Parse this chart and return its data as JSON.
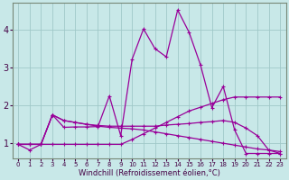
{
  "xlabel": "Windchill (Refroidissement éolien,°C)",
  "background_color": "#c8e8e8",
  "grid_color": "#a0c8c8",
  "line_color": "#990099",
  "xlim": [
    -0.5,
    23.5
  ],
  "ylim": [
    0.6,
    4.7
  ],
  "yticks": [
    1,
    2,
    3,
    4
  ],
  "xticks": [
    0,
    1,
    2,
    3,
    4,
    5,
    6,
    7,
    8,
    9,
    10,
    11,
    12,
    13,
    14,
    15,
    16,
    17,
    18,
    19,
    20,
    21,
    22,
    23
  ],
  "series0_x": [
    0,
    1,
    2,
    3,
    4,
    5,
    6,
    7,
    8,
    9,
    10,
    11,
    12,
    13,
    14,
    15,
    16,
    17,
    18,
    19,
    20,
    21,
    22,
    23
  ],
  "series0_y": [
    0.97,
    0.82,
    0.97,
    1.75,
    1.42,
    1.43,
    1.43,
    1.44,
    2.25,
    1.2,
    3.22,
    4.02,
    3.5,
    3.28,
    4.52,
    3.93,
    3.07,
    1.94,
    2.5,
    1.35,
    0.73,
    0.73,
    0.73,
    0.73
  ],
  "series1_x": [
    0,
    1,
    2,
    3,
    4,
    5,
    6,
    7,
    8,
    9,
    10,
    11,
    12,
    13,
    14,
    15,
    16,
    17,
    18,
    19,
    20,
    21,
    22,
    23
  ],
  "series1_y": [
    0.97,
    0.97,
    0.97,
    0.97,
    0.97,
    0.97,
    0.97,
    0.97,
    0.97,
    0.97,
    1.1,
    1.25,
    1.4,
    1.55,
    1.7,
    1.85,
    1.95,
    2.05,
    2.15,
    2.22,
    2.22,
    2.22,
    2.22,
    2.22
  ],
  "series2_x": [
    0,
    1,
    2,
    3,
    4,
    5,
    6,
    7,
    8,
    9,
    10,
    11,
    12,
    13,
    14,
    15,
    16,
    17,
    18,
    19,
    20,
    21,
    22,
    23
  ],
  "series2_y": [
    0.97,
    0.97,
    0.97,
    1.75,
    1.6,
    1.55,
    1.5,
    1.45,
    1.42,
    1.4,
    1.38,
    1.35,
    1.3,
    1.25,
    1.2,
    1.15,
    1.1,
    1.05,
    1.0,
    0.95,
    0.9,
    0.85,
    0.82,
    0.78
  ],
  "series3_x": [
    0,
    1,
    2,
    3,
    4,
    5,
    6,
    7,
    8,
    9,
    10,
    11,
    12,
    13,
    14,
    15,
    16,
    17,
    18,
    19,
    20,
    21,
    22,
    23
  ],
  "series3_y": [
    0.97,
    0.97,
    0.97,
    1.75,
    1.6,
    1.55,
    1.5,
    1.47,
    1.45,
    1.45,
    1.45,
    1.45,
    1.45,
    1.48,
    1.5,
    1.52,
    1.55,
    1.57,
    1.6,
    1.55,
    1.4,
    1.2,
    0.82,
    0.73
  ]
}
